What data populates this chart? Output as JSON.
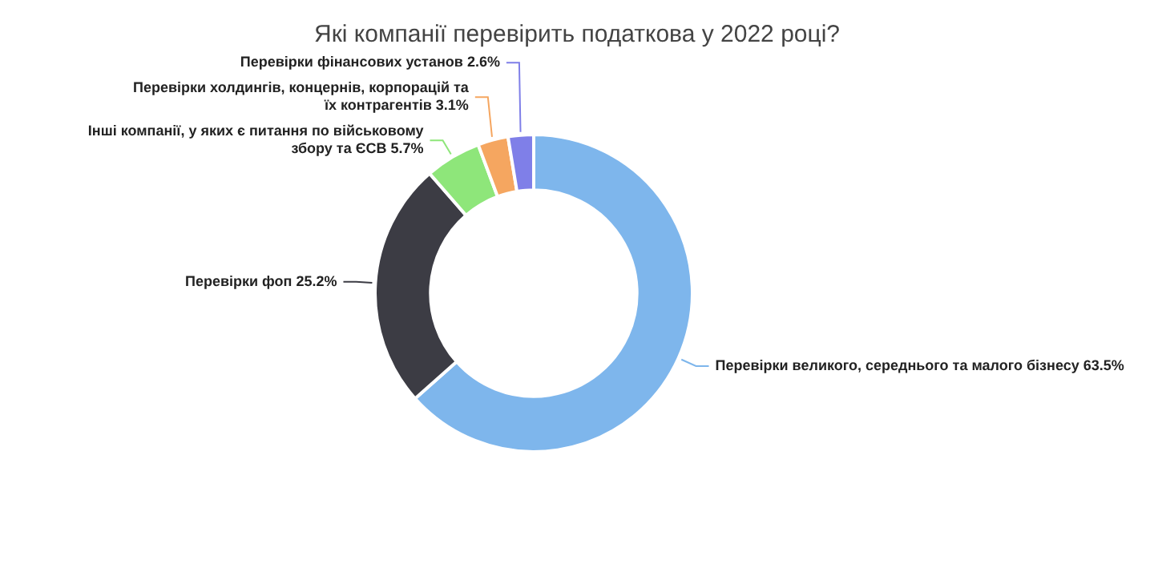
{
  "chart_data": {
    "type": "donut",
    "title": "Які компанії перевірить податкова у 2022 році?",
    "categories": [
      "Перевірки великого, середнього та малого бізнесу",
      "Перевірки фоп",
      "Інші компанії, у яких є питання по військовому збору та ЄСВ",
      "Перевірки холдингів, концернів, корпорацій та їх контрагентів",
      "Перевірки фінансових установ"
    ],
    "values": [
      63.5,
      25.2,
      5.7,
      3.1,
      2.6
    ],
    "colors": [
      "#7eb6ec",
      "#3c3c44",
      "#8ee67a",
      "#f5a660",
      "#7f7fe8"
    ],
    "value_labels": [
      "63.5%",
      "25.2%",
      "5.7%",
      "3.1%",
      "2.6%"
    ],
    "legend": false
  }
}
